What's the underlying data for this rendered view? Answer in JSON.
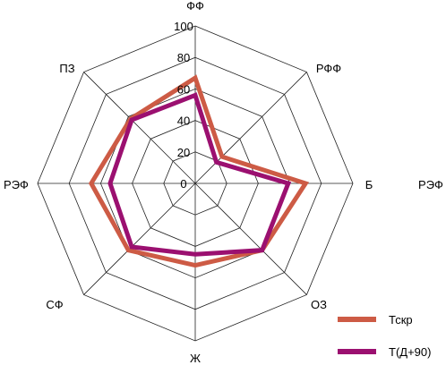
{
  "chart_data": {
    "type": "radar",
    "axes": [
      "ФФ",
      "РФФ",
      "Б",
      "ОЗ",
      "Ж",
      "СФ",
      "РЭФ",
      "ПЗ"
    ],
    "extra_label": "РЭФ",
    "rlim": [
      0,
      100
    ],
    "ticks": [
      0,
      20,
      40,
      60,
      80,
      100
    ],
    "grid": true,
    "legend_position": "bottom-right",
    "series": [
      {
        "name": "Тскр",
        "color": "#cd5b45",
        "values": [
          67,
          24,
          70,
          60,
          52,
          60,
          66,
          58
        ]
      },
      {
        "name": "Т(Д+90)",
        "color": "#9b1070",
        "values": [
          56,
          19,
          59,
          60,
          45,
          57,
          54,
          57
        ]
      }
    ]
  }
}
